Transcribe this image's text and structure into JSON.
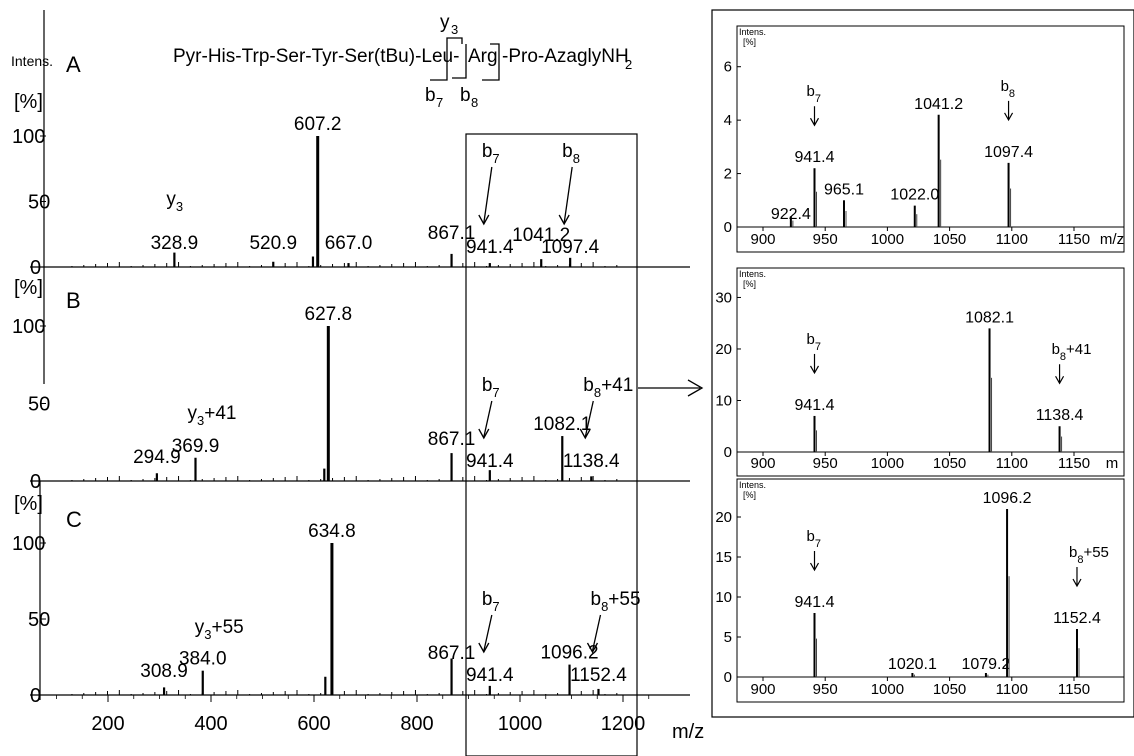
{
  "figure": {
    "peptide": {
      "y_ion_label": "y",
      "y_ion_sub": "3",
      "parts": [
        "Pyr-His-Trp-Ser-Tyr-Ser(tBu)-Leu-",
        "Arg",
        "-Pro-AzaglyNH",
        "2"
      ],
      "b7_label": "b",
      "b7_sub": "7",
      "b8_label": "b",
      "b8_sub": "8"
    },
    "main": {
      "y_title": "Intens.",
      "y_unit": "[%]",
      "x_unit": "m/z",
      "x_ticks": [
        "200",
        "400",
        "600",
        "800",
        "1000",
        "1200"
      ],
      "y_ticks": [
        "100",
        "50",
        "0"
      ]
    }
  },
  "chart_data": [
    {
      "type": "bar",
      "id": "main-A",
      "panel_label": "A",
      "xlabel": "m/z",
      "ylabel": "Intens. [%]",
      "xlim": [
        100,
        1300
      ],
      "ylim": [
        0,
        110
      ],
      "peaks": [
        {
          "x": 328.9,
          "y": 11,
          "label": "328.9"
        },
        {
          "x": 520.9,
          "y": 4,
          "label": "520.9"
        },
        {
          "x": 598,
          "y": 8
        },
        {
          "x": 607.2,
          "y": 100,
          "label": "607.2"
        },
        {
          "x": 667.0,
          "y": 3,
          "label": "667.0"
        },
        {
          "x": 867.1,
          "y": 10,
          "label": "867.1"
        },
        {
          "x": 941.4,
          "y": 3,
          "label": "941.4"
        },
        {
          "x": 1041.2,
          "y": 6,
          "label": "1041.2"
        },
        {
          "x": 1097.4,
          "y": 7,
          "label": "1097.4"
        }
      ],
      "annotations": [
        {
          "text": "y",
          "sub": "3",
          "at": 328.9
        },
        {
          "text": "b",
          "sub": "7",
          "at": 941.4,
          "arrow": true
        },
        {
          "text": "b",
          "sub": "8",
          "at": 1097.4,
          "arrow": true
        }
      ]
    },
    {
      "type": "bar",
      "id": "main-B",
      "panel_label": "B",
      "xlabel": "m/z",
      "ylabel": "Intens. [%]",
      "xlim": [
        100,
        1300
      ],
      "ylim": [
        0,
        110
      ],
      "peaks": [
        {
          "x": 294.9,
          "y": 5,
          "label": "294.9"
        },
        {
          "x": 369.9,
          "y": 15,
          "label": "369.9"
        },
        {
          "x": 620,
          "y": 8
        },
        {
          "x": 627.8,
          "y": 100,
          "label": "627.8"
        },
        {
          "x": 867.1,
          "y": 18,
          "label": "867.1"
        },
        {
          "x": 941.4,
          "y": 7,
          "label": "941.4"
        },
        {
          "x": 1082.1,
          "y": 29,
          "label": "1082.1"
        },
        {
          "x": 1138.4,
          "y": 3,
          "label": "1138.4"
        }
      ],
      "annotations": [
        {
          "text": "y",
          "sub": "3",
          "extra": "+41",
          "at": 369.9
        },
        {
          "text": "b",
          "sub": "7",
          "at": 941.4,
          "arrow": true
        },
        {
          "text": "b",
          "sub": "8",
          "extra": "+41",
          "at": 1138.4,
          "arrow": true
        }
      ]
    },
    {
      "type": "bar",
      "id": "main-C",
      "panel_label": "C",
      "xlabel": "m/z",
      "ylabel": "Intens. [%]",
      "xlim": [
        100,
        1300
      ],
      "ylim": [
        0,
        110
      ],
      "peaks": [
        {
          "x": 308.9,
          "y": 5,
          "label": "308.9"
        },
        {
          "x": 384.0,
          "y": 16,
          "label": "384.0"
        },
        {
          "x": 622,
          "y": 12
        },
        {
          "x": 634.8,
          "y": 100,
          "label": "634.8"
        },
        {
          "x": 867.1,
          "y": 24,
          "label": "867.1"
        },
        {
          "x": 941.4,
          "y": 6,
          "label": "941.4"
        },
        {
          "x": 1096.2,
          "y": 20,
          "label": "1096.2"
        },
        {
          "x": 1152.4,
          "y": 4,
          "label": "1152.4"
        }
      ],
      "annotations": [
        {
          "text": "y",
          "sub": "3",
          "extra": "+55",
          "at": 384.0
        },
        {
          "text": "b",
          "sub": "7",
          "at": 941.4,
          "arrow": true
        },
        {
          "text": "b",
          "sub": "8",
          "extra": "+55",
          "at": 1152.4,
          "arrow": true
        }
      ]
    },
    {
      "type": "bar",
      "id": "inset-1",
      "ylabel": "Intens. [%]",
      "xlabel": "m/z",
      "xlim": [
        890,
        1195
      ],
      "ylim": [
        0,
        7
      ],
      "x_ticks": [
        "900",
        "950",
        "1000",
        "1050",
        "1100",
        "1150",
        "m/z"
      ],
      "y_ticks": [
        "6",
        "4",
        "2",
        "0"
      ],
      "peaks": [
        {
          "x": 922.4,
          "y": 0.4,
          "label": "922.4"
        },
        {
          "x": 941.4,
          "y": 2.2,
          "label": "941.4"
        },
        {
          "x": 965.1,
          "y": 1.0,
          "label": "965.1"
        },
        {
          "x": 1022.0,
          "y": 0.8,
          "label": "1022.0"
        },
        {
          "x": 1041.2,
          "y": 4.2,
          "label": "1041.2"
        },
        {
          "x": 1097.4,
          "y": 2.4,
          "label": "1097.4"
        }
      ],
      "annotations": [
        {
          "text": "b",
          "sub": "7",
          "at": 941.4,
          "arrow": true
        },
        {
          "text": "b",
          "sub": "8",
          "at": 1097.4,
          "arrow": true
        }
      ]
    },
    {
      "type": "bar",
      "id": "inset-2",
      "ylabel": "Intens. [%]",
      "xlabel": "m/z",
      "xlim": [
        890,
        1195
      ],
      "ylim": [
        0,
        33
      ],
      "x_ticks": [
        "900",
        "950",
        "1000",
        "1050",
        "1100",
        "1150",
        "m"
      ],
      "y_ticks": [
        "30",
        "20",
        "10",
        "0"
      ],
      "peaks": [
        {
          "x": 941.4,
          "y": 7,
          "label": "941.4"
        },
        {
          "x": 1082.1,
          "y": 24,
          "label": "1082.1"
        },
        {
          "x": 1138.4,
          "y": 5,
          "label": "1138.4"
        }
      ],
      "annotations": [
        {
          "text": "b",
          "sub": "7",
          "at": 941.4,
          "arrow": true
        },
        {
          "text": "b",
          "sub": "8",
          "extra": "+41",
          "at": 1138.4,
          "arrow": true
        }
      ]
    },
    {
      "type": "bar",
      "id": "inset-3",
      "ylabel": "Intens. [%]",
      "xlabel": "m/z",
      "xlim": [
        890,
        1195
      ],
      "ylim": [
        0,
        23
      ],
      "x_ticks": [
        "900",
        "950",
        "1000",
        "1050",
        "1100",
        "1150"
      ],
      "y_ticks": [
        "20",
        "15",
        "10",
        "5",
        "0"
      ],
      "peaks": [
        {
          "x": 941.4,
          "y": 8,
          "label": "941.4"
        },
        {
          "x": 1020.1,
          "y": 0.5,
          "label": "1020.1"
        },
        {
          "x": 1079.2,
          "y": 0.5,
          "label": "1079.2"
        },
        {
          "x": 1096.2,
          "y": 21,
          "label": "1096.2"
        },
        {
          "x": 1152.4,
          "y": 6,
          "label": "1152.4"
        }
      ],
      "annotations": [
        {
          "text": "b",
          "sub": "7",
          "at": 941.4,
          "arrow": true
        },
        {
          "text": "b",
          "sub": "8",
          "extra": "+55",
          "at": 1152.4,
          "arrow": true
        }
      ]
    }
  ]
}
